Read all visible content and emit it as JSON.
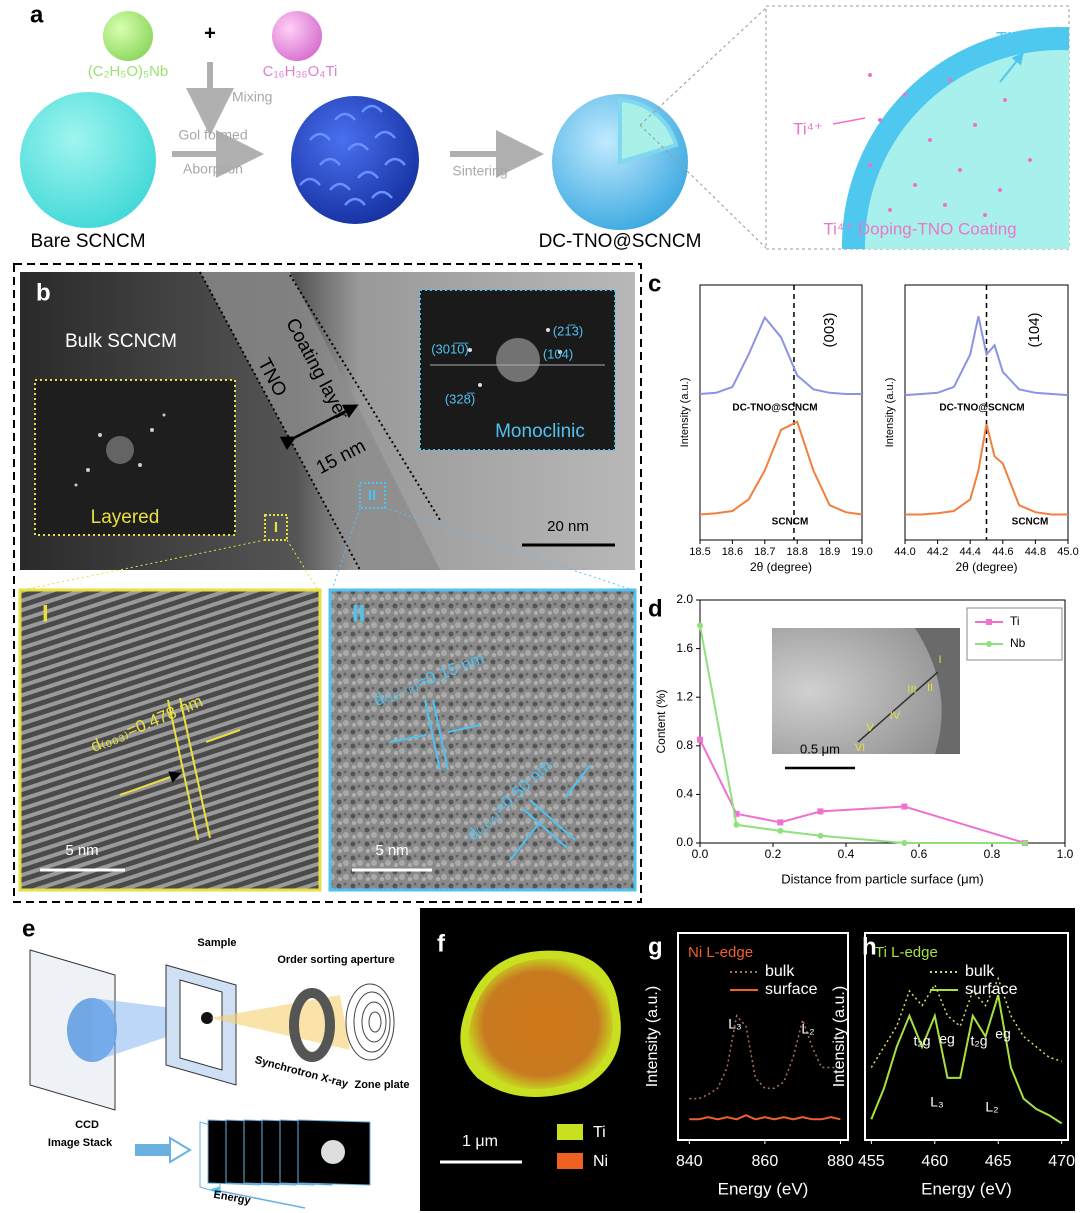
{
  "panel_labels": [
    "a",
    "b",
    "c",
    "d",
    "e",
    "f",
    "g",
    "h"
  ],
  "panel_a": {
    "plus": "+",
    "precursor_nb": "(C₂H₅O)₅Nb",
    "precursor_ti": "C₁₆H₃₆O₄Ti",
    "mixing": "Mixing",
    "gel": "Gol formed",
    "absorption": "Aborption",
    "sintering": "Sintering",
    "bare": "Bare SCNCM",
    "product": "DC-TNO@SCNCM",
    "tno": "TNO",
    "ti_ion": "Ti⁴⁺",
    "coating": "Ti⁴⁺ Doping-TNO Coating"
  },
  "panel_b": {
    "bulk": "Bulk SCNCM",
    "coating": "Coating layer",
    "tno": "TNO",
    "thickness": "15 nm",
    "layered": "Layered",
    "monoclinic": "Monoclinic",
    "scale": "20 nm",
    "fft_spots": [
      "(301̅0̅)",
      "(21̅3)",
      "(104)",
      "(328̅)"
    ],
    "region_1": "I",
    "region_2": "II",
    "d003": "d₍₀₀₃₎=0.478 nm",
    "d128": "d₍₁₂₋₈₎=0.15 nm",
    "d104": "d₍₁₀₄₎=0.50 nm",
    "scale_1": "5 nm",
    "scale_2": "5 nm"
  },
  "panel_e": {
    "sample": "Sample",
    "aperture": "Order sorting aperture",
    "ccd": "CCD",
    "xray": "Synchrotron X-ray",
    "zone_plate": "Zone plate",
    "stack": "Image Stack",
    "energy": "Energy"
  },
  "panel_f": {
    "scale": "1 μm",
    "legend": [
      "Ti",
      "Ni"
    ]
  },
  "chart_data": [
    {
      "type": "line",
      "xlabel": "2θ (degree)",
      "ylabel": "Intensity (a.u.)",
      "x": [
        18.5,
        18.55,
        18.6,
        18.65,
        18.7,
        18.75,
        18.8,
        18.85,
        18.9,
        18.95,
        19.0
      ],
      "series": [
        {
          "name": "DC-TNO@SCNCM",
          "color": "#8a94e0",
          "values": [
            1.26,
            1.27,
            1.32,
            1.6,
            1.92,
            1.75,
            1.42,
            1.3,
            1.27,
            1.26,
            1.26
          ]
        },
        {
          "name": "SCNCM",
          "color": "#f08040",
          "values": [
            0.22,
            0.23,
            0.25,
            0.35,
            0.6,
            0.95,
            1.02,
            0.6,
            0.3,
            0.24,
            0.22
          ]
        }
      ],
      "xlim": [
        18.5,
        19.0
      ],
      "xticks": [
        18.5,
        18.6,
        18.7,
        18.8,
        18.9,
        {
          "value": 19.0,
          "label": "19.0"
        }
      ],
      "ylim": [
        0,
        2.2
      ],
      "ref_line": 18.79,
      "annotations": [
        "(003)"
      ]
    },
    {
      "type": "line",
      "xlabel": "2θ (degree)",
      "ylabel": "Intensity (a.u.)",
      "x": [
        44.0,
        44.1,
        44.2,
        44.3,
        44.4,
        44.45,
        44.5,
        44.55,
        44.6,
        44.7,
        44.8,
        44.9,
        45.0
      ],
      "series": [
        {
          "name": "DC-TNO@SCNCM",
          "color": "#8a94e0",
          "values": [
            1.25,
            1.26,
            1.27,
            1.32,
            1.6,
            1.93,
            1.6,
            1.68,
            1.45,
            1.3,
            1.27,
            1.26,
            1.25
          ]
        },
        {
          "name": "SCNCM",
          "color": "#f08040",
          "values": [
            0.22,
            0.22,
            0.23,
            0.25,
            0.35,
            0.6,
            1.0,
            0.72,
            0.66,
            0.3,
            0.24,
            0.22,
            0.22
          ]
        }
      ],
      "xlim": [
        44.0,
        45.0
      ],
      "xticks": [
        {
          "value": 44.0,
          "label": "44.0"
        },
        44.2,
        44.4,
        44.6,
        44.8,
        {
          "value": 45.0,
          "label": "45.0"
        }
      ],
      "ylim": [
        0,
        2.2
      ],
      "ref_line": 44.5,
      "annotations": [
        "(104)"
      ]
    },
    {
      "type": "line",
      "xlabel": "Distance from particle surface (μm)",
      "ylabel": "Content (%)",
      "x": [
        0,
        0.1,
        0.22,
        0.33,
        0.56,
        0.89
      ],
      "series": [
        {
          "name": "Ti",
          "color": "#f070d0",
          "marker": "square",
          "values": [
            0.85,
            0.24,
            0.17,
            0.26,
            0.3,
            0.0
          ]
        },
        {
          "name": "Nb",
          "color": "#90e080",
          "marker": "circle",
          "values": [
            1.79,
            0.15,
            0.1,
            0.06,
            0.0,
            0.0
          ]
        }
      ],
      "xlim": [
        0,
        1.0
      ],
      "xticks": [
        {
          "value": 0,
          "label": "0.0"
        },
        0.2,
        0.4,
        0.6,
        0.8,
        {
          "value": 1.0,
          "label": "1.0"
        }
      ],
      "ylim": [
        0,
        2.0
      ],
      "yticks": [
        {
          "value": 0,
          "label": "0.0"
        },
        0.4,
        0.8,
        1.2,
        1.6,
        {
          "value": 2.0,
          "label": "2.0"
        }
      ],
      "inset_labels": [
        "VI",
        "V",
        "IV",
        "III",
        "II",
        "I"
      ],
      "inset_scale": "0.5 μm"
    },
    {
      "type": "line",
      "title": "Ni L-edge",
      "xlabel": "Energy (eV)",
      "ylabel": "Intensity (a.u.)",
      "x": [
        840,
        842.5,
        845,
        847.5,
        850,
        852.5,
        855,
        857.5,
        860,
        862.5,
        865,
        867.5,
        870,
        872.5,
        875,
        877.5,
        880
      ],
      "series": [
        {
          "name": "bulk",
          "color": "#b07060",
          "dash": true,
          "values": [
            0.2,
            0.2,
            0.22,
            0.25,
            0.35,
            0.6,
            0.55,
            0.3,
            0.25,
            0.25,
            0.28,
            0.4,
            0.58,
            0.45,
            0.35,
            0.35,
            0.35
          ]
        },
        {
          "name": "surface",
          "color": "#f0602a",
          "values": [
            0.1,
            0.1,
            0.11,
            0.1,
            0.11,
            0.1,
            0.12,
            0.1,
            0.11,
            0.1,
            0.11,
            0.1,
            0.11,
            0.1,
            0.1,
            0.11,
            0.1
          ]
        }
      ],
      "xlim": [
        837,
        882
      ],
      "xticks": [
        840,
        860,
        880
      ],
      "ylim": [
        0,
        1
      ],
      "annotations": [
        "L₃",
        "L₂"
      ]
    },
    {
      "type": "line",
      "title": "Ti L-edge",
      "xlabel": "Energy (eV)",
      "ylabel": "Intensity (a.u.)",
      "x": [
        455,
        456,
        457,
        458,
        459,
        460,
        461,
        462,
        463,
        464,
        465,
        466,
        467,
        468,
        469,
        470
      ],
      "series": [
        {
          "name": "bulk",
          "color": "#d8e060",
          "dash": true,
          "values": [
            0.35,
            0.45,
            0.55,
            0.72,
            0.65,
            0.75,
            0.6,
            0.55,
            0.72,
            0.65,
            0.78,
            0.6,
            0.5,
            0.45,
            0.4,
            0.38
          ]
        },
        {
          "name": "surface",
          "color": "#a8e040",
          "values": [
            0.1,
            0.25,
            0.45,
            0.6,
            0.45,
            0.6,
            0.3,
            0.3,
            0.6,
            0.5,
            0.7,
            0.35,
            0.2,
            0.15,
            0.12,
            0.08
          ]
        }
      ],
      "xlim": [
        454.5,
        470.5
      ],
      "xticks": [
        455,
        460,
        465,
        470
      ],
      "ylim": [
        0,
        1
      ],
      "annotations": [
        "t₂g",
        "eg",
        "t₂g",
        "eg",
        "L₃",
        "L₂"
      ]
    }
  ]
}
